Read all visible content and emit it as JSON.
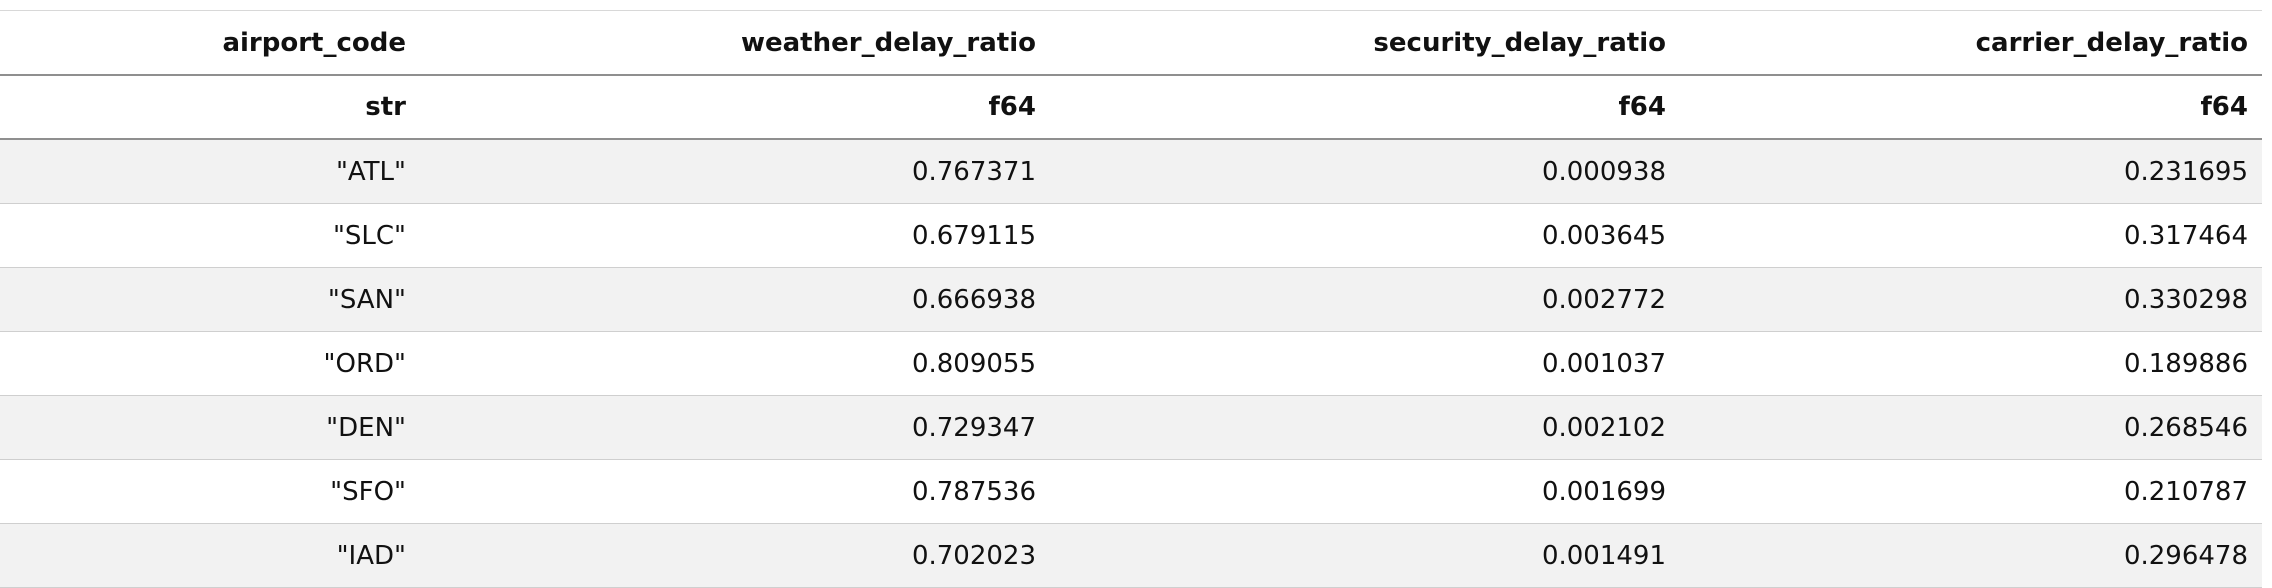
{
  "table": {
    "columns": [
      {
        "name": "airport_code",
        "dtype": "str"
      },
      {
        "name": "weather_delay_ratio",
        "dtype": "f64"
      },
      {
        "name": "security_delay_ratio",
        "dtype": "f64"
      },
      {
        "name": "carrier_delay_ratio",
        "dtype": "f64"
      }
    ],
    "rows": [
      [
        "\"ATL\"",
        "0.767371",
        "0.000938",
        "0.231695"
      ],
      [
        "\"SLC\"",
        "0.679115",
        "0.003645",
        "0.317464"
      ],
      [
        "\"SAN\"",
        "0.666938",
        "0.002772",
        "0.330298"
      ],
      [
        "\"ORD\"",
        "0.809055",
        "0.001037",
        "0.189886"
      ],
      [
        "\"DEN\"",
        "0.729347",
        "0.002102",
        "0.268546"
      ],
      [
        "\"SFO\"",
        "0.787536",
        "0.001699",
        "0.210787"
      ],
      [
        "\"IAD\"",
        "0.702023",
        "0.001491",
        "0.296478"
      ]
    ]
  }
}
